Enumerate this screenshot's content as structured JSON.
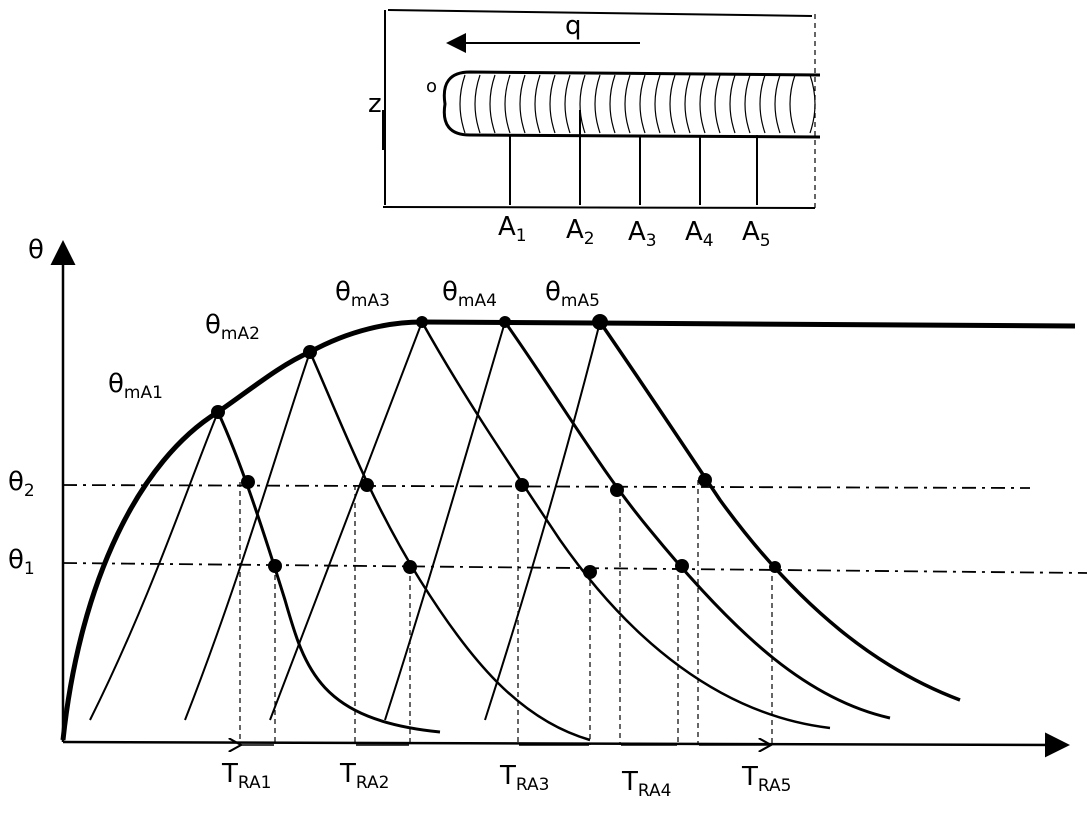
{
  "sketch": {
    "q": "q",
    "z": "z",
    "o": "o",
    "positions": [
      {
        "main": "A",
        "sub": "1"
      },
      {
        "main": "A",
        "sub": "2"
      },
      {
        "main": "A",
        "sub": "3"
      },
      {
        "main": "A",
        "sub": "4"
      },
      {
        "main": "A",
        "sub": "5"
      }
    ]
  },
  "graph": {
    "y_axis": "θ",
    "maxima": [
      {
        "main": "θ",
        "sub": "mA1"
      },
      {
        "main": "θ",
        "sub": "mA2"
      },
      {
        "main": "θ",
        "sub": "mA3"
      },
      {
        "main": "θ",
        "sub": "mA4"
      },
      {
        "main": "θ",
        "sub": "mA5"
      }
    ],
    "levels": [
      {
        "main": "θ",
        "sub": "2"
      },
      {
        "main": "θ",
        "sub": "1"
      }
    ],
    "times": [
      {
        "main": "T",
        "sub": "RA1"
      },
      {
        "main": "T",
        "sub": "RA2"
      },
      {
        "main": "T",
        "sub": "RA3"
      },
      {
        "main": "T",
        "sub": "RA4"
      },
      {
        "main": "T",
        "sub": "RA5"
      }
    ]
  }
}
